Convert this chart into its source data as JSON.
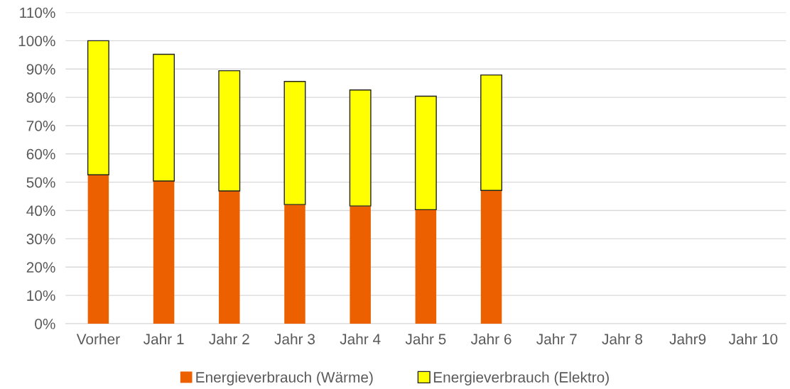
{
  "chart_data": {
    "type": "bar",
    "stacked": true,
    "categories": [
      "Vorher",
      "Jahr 1",
      "Jahr 2",
      "Jahr 3",
      "Jahr 4",
      "Jahr 5",
      "Jahr 6",
      "Jahr 7",
      "Jahr 8",
      "Jahr9",
      "Jahr 10"
    ],
    "series": [
      {
        "name": "Energieverbrauch (Wärme)",
        "color": "#ec6000",
        "values": [
          52.6,
          50.4,
          46.9,
          42.1,
          41.6,
          40.3,
          47.1,
          null,
          null,
          null,
          null
        ]
      },
      {
        "name": "Energieverbrauch (Elektro)",
        "color": "#ffff00",
        "values": [
          47.4,
          44.8,
          42.5,
          43.5,
          41.0,
          40.1,
          40.8,
          null,
          null,
          null,
          null
        ]
      }
    ],
    "ylim": [
      0,
      110
    ],
    "yticks": [
      {
        "value": 0,
        "label": "0%"
      },
      {
        "value": 10,
        "label": "10%"
      },
      {
        "value": 20,
        "label": "20%"
      },
      {
        "value": 30,
        "label": "30%"
      },
      {
        "value": 40,
        "label": "40%"
      },
      {
        "value": 50,
        "label": "50%"
      },
      {
        "value": 60,
        "label": "60%"
      },
      {
        "value": 70,
        "label": "70%"
      },
      {
        "value": 80,
        "label": "80%"
      },
      {
        "value": 90,
        "label": "90%"
      },
      {
        "value": 100,
        "label": "100%"
      },
      {
        "value": 110,
        "label": "110%"
      }
    ],
    "grid": "y",
    "legend": "bottom"
  }
}
